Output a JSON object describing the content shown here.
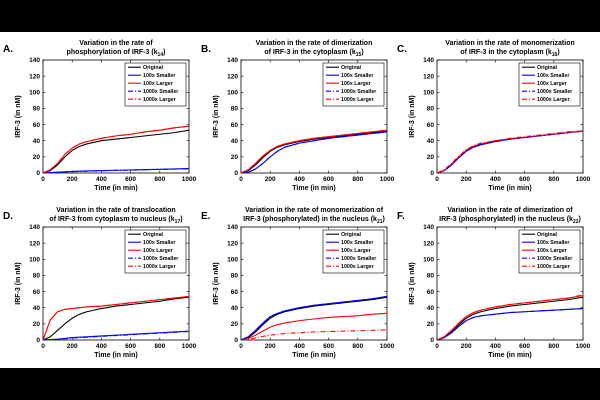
{
  "chart_data": [
    {
      "panel_letter": "A.",
      "title_line1": "Variation in the rate of",
      "title_line2": "phosphorylation of IRF-3 (k",
      "title_sub": "14",
      "title_end": ")",
      "type": "line",
      "xlabel": "Time (in min)",
      "ylabel": "IRF-3 (in nM)",
      "xlim": [
        0,
        1000
      ],
      "ylim": [
        0,
        140
      ],
      "xticks": [
        0,
        200,
        400,
        600,
        800,
        1000
      ],
      "yticks": [
        0,
        20,
        40,
        60,
        80,
        100,
        120,
        140
      ],
      "x": [
        0,
        50,
        100,
        150,
        200,
        250,
        300,
        400,
        500,
        600,
        700,
        800,
        900,
        1000
      ],
      "series": [
        {
          "name": "Original",
          "color": "#000000",
          "dash": "solid",
          "values": [
            0,
            3,
            10,
            20,
            28,
            33,
            36,
            40,
            42,
            44,
            46,
            48,
            50,
            53
          ]
        },
        {
          "name": "100x Smaller",
          "color": "#0000ff",
          "dash": "solid",
          "values": [
            0,
            0.5,
            1,
            1.5,
            2,
            2.3,
            2.6,
            3,
            3.4,
            3.8,
            4.2,
            4.6,
            5,
            5.5
          ]
        },
        {
          "name": "100x Larger",
          "color": "#ff0000",
          "dash": "solid",
          "values": [
            0,
            4,
            12,
            23,
            31,
            36,
            39,
            43,
            46,
            48,
            51,
            53,
            56,
            58
          ]
        },
        {
          "name": "1000x Smaller",
          "color": "#0000ff",
          "dash": "dashdot",
          "values": [
            0,
            0.4,
            0.8,
            1.2,
            1.6,
            2,
            2.3,
            2.8,
            3.2,
            3.6,
            4,
            4.4,
            4.8,
            5.2
          ]
        },
        {
          "name": "1000x Larger",
          "color": "#ff0000",
          "dash": "dashdot",
          "values": [
            0,
            4,
            12,
            23,
            31,
            36,
            39,
            43,
            46,
            48,
            51,
            53,
            56,
            58
          ]
        }
      ]
    },
    {
      "panel_letter": "B.",
      "title_line1": "Variation in the rate of dimerization",
      "title_line2": "of IRF-3 in the cytoplasm (k",
      "title_sub": "15",
      "title_end": ")",
      "type": "line",
      "xlabel": "Time (in min)",
      "ylabel": "IRF-3 (in nM)",
      "xlim": [
        0,
        1000
      ],
      "ylim": [
        0,
        140
      ],
      "xticks": [
        0,
        200,
        400,
        600,
        800,
        1000
      ],
      "yticks": [
        0,
        20,
        40,
        60,
        80,
        100,
        120,
        140
      ],
      "x": [
        0,
        50,
        100,
        150,
        200,
        250,
        300,
        400,
        500,
        600,
        700,
        800,
        900,
        1000
      ],
      "series": [
        {
          "name": "Original",
          "color": "#000000",
          "dash": "solid",
          "values": [
            0,
            3,
            10,
            19,
            27,
            32,
            35,
            39,
            42,
            44,
            46,
            48,
            50,
            52
          ]
        },
        {
          "name": "100x Smaller",
          "color": "#0000ff",
          "dash": "solid",
          "values": [
            0,
            1,
            5,
            12,
            20,
            27,
            32,
            37,
            40,
            43,
            45,
            47,
            49,
            51
          ]
        },
        {
          "name": "100x Larger",
          "color": "#ff0000",
          "dash": "solid",
          "values": [
            0,
            4,
            12,
            21,
            28,
            33,
            36,
            40,
            43,
            45,
            47,
            49,
            51,
            53
          ]
        },
        {
          "name": "1000x Smaller",
          "color": "#0000ff",
          "dash": "dashdot",
          "values": [
            0,
            1,
            5,
            12,
            20,
            27,
            32,
            37,
            40,
            43,
            45,
            47,
            49,
            51
          ]
        },
        {
          "name": "1000x Larger",
          "color": "#ff0000",
          "dash": "dashdot",
          "values": [
            0,
            4,
            12,
            21,
            28,
            33,
            36,
            40,
            43,
            45,
            47,
            49,
            51,
            53
          ]
        }
      ]
    },
    {
      "panel_letter": "C.",
      "title_line1": "Variation in the rate of monomerization",
      "title_line2": "of IRF-3 in the cytoplasm (k",
      "title_sub": "16",
      "title_end": ")",
      "type": "line",
      "xlabel": "Time (in min)",
      "ylabel": "IRF-3 (in nM)",
      "xlim": [
        0,
        1000
      ],
      "ylim": [
        0,
        140
      ],
      "xticks": [
        0,
        200,
        400,
        600,
        800,
        1000
      ],
      "yticks": [
        0,
        20,
        40,
        60,
        80,
        100,
        120,
        140
      ],
      "x": [
        0,
        50,
        100,
        150,
        200,
        250,
        300,
        400,
        500,
        600,
        700,
        800,
        900,
        1000
      ],
      "series": [
        {
          "name": "Original",
          "color": "#000000",
          "dash": "solid",
          "values": [
            0,
            3,
            10,
            19,
            27,
            32,
            35,
            39,
            42,
            44,
            46,
            48,
            50,
            52
          ]
        },
        {
          "name": "100x Smaller",
          "color": "#0000ff",
          "dash": "solid",
          "values": [
            0,
            3,
            10,
            19,
            27,
            32,
            35,
            39,
            42,
            44,
            46,
            48,
            50,
            52
          ]
        },
        {
          "name": "100x Larger",
          "color": "#ff0000",
          "dash": "solid",
          "values": [
            0,
            3,
            11,
            20,
            28,
            33,
            36,
            40,
            42,
            44,
            46,
            48,
            50,
            52
          ]
        },
        {
          "name": "1000x Smaller",
          "color": "#0000ff",
          "dash": "dashdot",
          "values": [
            0,
            3,
            10,
            19,
            27,
            32,
            35,
            39,
            42,
            44,
            46,
            48,
            50,
            52
          ]
        },
        {
          "name": "1000x Larger",
          "color": "#ff0000",
          "dash": "dashdot",
          "values": [
            0,
            4,
            12,
            21,
            29,
            34,
            37,
            40,
            43,
            45,
            47,
            49,
            51,
            52
          ]
        }
      ]
    },
    {
      "panel_letter": "D.",
      "title_line1": "Variation in the rate of translocation",
      "title_line2": "of IRF-3 from cytoplasm to nucleus (k",
      "title_sub": "17",
      "title_end": ")",
      "type": "line",
      "xlabel": "Time (in min)",
      "ylabel": "IRF-3 (in nM)",
      "xlim": [
        0,
        1000
      ],
      "ylim": [
        0,
        140
      ],
      "xticks": [
        0,
        200,
        400,
        600,
        800,
        1000
      ],
      "yticks": [
        0,
        20,
        40,
        60,
        80,
        100,
        120,
        140
      ],
      "x": [
        0,
        50,
        100,
        150,
        200,
        250,
        300,
        400,
        500,
        600,
        700,
        800,
        900,
        1000
      ],
      "series": [
        {
          "name": "Original",
          "color": "#000000",
          "dash": "solid",
          "values": [
            0,
            4,
            12,
            20,
            27,
            32,
            35,
            39,
            42,
            44,
            46,
            48,
            51,
            53
          ]
        },
        {
          "name": "100x Smaller",
          "color": "#0000ff",
          "dash": "solid",
          "values": [
            0,
            0.5,
            1,
            2,
            3,
            3.5,
            4,
            5,
            6,
            7,
            8,
            9,
            10,
            11
          ]
        },
        {
          "name": "100x Larger",
          "color": "#ff0000",
          "dash": "solid",
          "values": [
            0,
            25,
            35,
            38,
            39,
            40,
            41,
            42,
            44,
            46,
            48,
            50,
            52,
            54
          ]
        },
        {
          "name": "1000x Smaller",
          "color": "#0000ff",
          "dash": "dashdot",
          "values": [
            0,
            0.4,
            0.8,
            1.5,
            2.5,
            3,
            3.5,
            4.5,
            5.5,
            6.5,
            7.5,
            8.5,
            9.5,
            10.5
          ]
        },
        {
          "name": "1000x Larger",
          "color": "#ff0000",
          "dash": "dashdot",
          "values": [
            0,
            25,
            35,
            38,
            39,
            40,
            41,
            42,
            44,
            46,
            48,
            50,
            52,
            54
          ]
        }
      ]
    },
    {
      "panel_letter": "E.",
      "title_line1": "Variation in the rate of monomerization of",
      "title_line2": "IRF-3 (phosphorylated) in the nucleus (k",
      "title_sub": "21",
      "title_end": ")",
      "type": "line",
      "xlabel": "Time (in min)",
      "ylabel": "IRF-3 (in nM)",
      "xlim": [
        0,
        1000
      ],
      "ylim": [
        0,
        140
      ],
      "xticks": [
        0,
        200,
        400,
        600,
        800,
        1000
      ],
      "yticks": [
        0,
        20,
        40,
        60,
        80,
        100,
        120,
        140
      ],
      "x": [
        0,
        50,
        100,
        150,
        200,
        250,
        300,
        400,
        500,
        600,
        700,
        800,
        900,
        1000
      ],
      "series": [
        {
          "name": "Original",
          "color": "#000000",
          "dash": "solid",
          "values": [
            0,
            3,
            10,
            19,
            27,
            32,
            35,
            39,
            42,
            44,
            46,
            48,
            50,
            53
          ]
        },
        {
          "name": "100x Smaller",
          "color": "#0000ff",
          "dash": "solid",
          "values": [
            0,
            4,
            12,
            21,
            29,
            33,
            36,
            40,
            43,
            45,
            47,
            49,
            51,
            54
          ]
        },
        {
          "name": "100x Larger",
          "color": "#ff0000",
          "dash": "solid",
          "values": [
            0,
            2,
            6,
            11,
            16,
            19,
            21,
            24,
            26,
            28,
            29,
            30,
            32,
            33
          ]
        },
        {
          "name": "1000x Smaller",
          "color": "#0000ff",
          "dash": "dashdot",
          "values": [
            0,
            4,
            12,
            21,
            29,
            33,
            36,
            40,
            43,
            45,
            47,
            49,
            51,
            54
          ]
        },
        {
          "name": "1000x Larger",
          "color": "#ff0000",
          "dash": "dashdot",
          "values": [
            0,
            1,
            2.5,
            4.5,
            6,
            7,
            8,
            9,
            10,
            10.5,
            11,
            11.5,
            12,
            12.5
          ]
        }
      ]
    },
    {
      "panel_letter": "F.",
      "title_line1": "Variation in the rate of dimerization of",
      "title_line2": "IRF-3 (phosphorylated) in the nucleus (k",
      "title_sub": "22",
      "title_end": ")",
      "type": "line",
      "xlabel": "Time (in min)",
      "ylabel": "IRF-3 (in nM)",
      "xlim": [
        0,
        1000
      ],
      "ylim": [
        0,
        140
      ],
      "xticks": [
        0,
        200,
        400,
        600,
        800,
        1000
      ],
      "yticks": [
        0,
        20,
        40,
        60,
        80,
        100,
        120,
        140
      ],
      "x": [
        0,
        50,
        100,
        150,
        200,
        250,
        300,
        400,
        500,
        600,
        700,
        800,
        900,
        1000
      ],
      "series": [
        {
          "name": "Original",
          "color": "#000000",
          "dash": "solid",
          "values": [
            0,
            3,
            10,
            19,
            27,
            32,
            35,
            39,
            42,
            44,
            46,
            48,
            50,
            53
          ]
        },
        {
          "name": "100x Smaller",
          "color": "#0000ff",
          "dash": "solid",
          "values": [
            0,
            3,
            9,
            17,
            24,
            28,
            30,
            32,
            34,
            35,
            36,
            37,
            38,
            39
          ]
        },
        {
          "name": "100x Larger",
          "color": "#ff0000",
          "dash": "solid",
          "values": [
            0,
            4,
            12,
            21,
            29,
            34,
            37,
            41,
            44,
            46,
            48,
            50,
            52,
            55
          ]
        },
        {
          "name": "1000x Smaller",
          "color": "#0000ff",
          "dash": "dashdot",
          "values": [
            0,
            3,
            9,
            17,
            24,
            28,
            30,
            32,
            34,
            35,
            36,
            37,
            38,
            39
          ]
        },
        {
          "name": "1000x Larger",
          "color": "#ff0000",
          "dash": "dashdot",
          "values": [
            0,
            4,
            12,
            21,
            29,
            34,
            37,
            41,
            44,
            46,
            48,
            50,
            52,
            56
          ]
        }
      ]
    }
  ]
}
